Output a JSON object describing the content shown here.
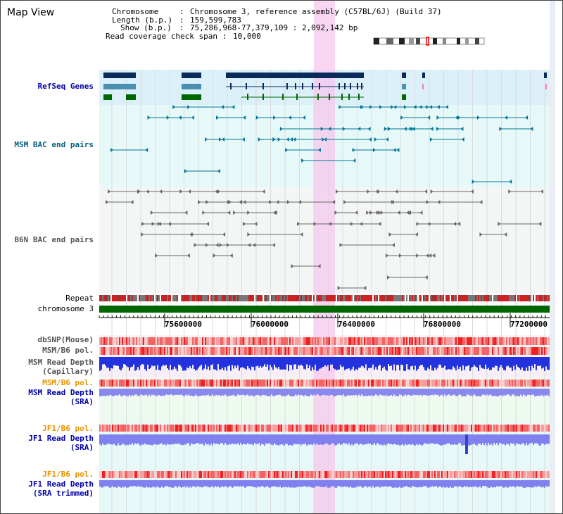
{
  "title": "Map View",
  "info": {
    "chromosome_label": "Chromosome",
    "chromosome_value": "Chromosome 3, reference assembly (C57BL/6J) (Build 37)",
    "length_label": "Length (b.p.)",
    "length_value": "159,599,783",
    "show_label": "Show (b.p.)",
    "show_value": "75,286,968-77,379,109 : 2,092,142 bp",
    "coverage_label": "Read coverage check span",
    "coverage_value": "10,000"
  },
  "tracks": {
    "refseq": "RefSeq Genes",
    "msm_bac": "MSM BAC end pairs",
    "b6n_bac": "B6N BAC end pairs",
    "repeat": "Repeat",
    "chromosome": "chromosome 3",
    "dbsnp": "dbSNP(Mouse)",
    "msm_b6_pol_1": "MSM/B6 pol.",
    "msm_depth_cap_1": "MSM Read Depth",
    "msm_depth_cap_2": "(Capillary)",
    "msm_b6_pol_2": "MSM/B6 pol.",
    "msm_depth_sra_1": "MSM Read Depth",
    "msm_depth_sra_2": "(SRA)",
    "jf1_b6_pol_1": "JF1/B6 pol.",
    "jf1_depth_sra_1": "JF1 Read Depth",
    "jf1_depth_sra_2": "(SRA)",
    "jf1_b6_pol_2": "JF1/B6 pol.",
    "jf1_depth_trim_1": "JF1 Read Depth",
    "jf1_depth_trim_2": "(SRA trimmed)"
  },
  "axis_ticks": [
    "75600000",
    "76000000",
    "76400000",
    "76800000",
    "77200000"
  ],
  "colors": {
    "refseq_bg": "#dcf0fa",
    "msm_bg": "#e6f8f8",
    "b6n_bg": "#f4f6f6",
    "highlight": "#f6c8ee",
    "navy": "#0a2a5c",
    "teal": "#4a90b0",
    "green": "#006600",
    "msm_teal": "#007799",
    "gray": "#666666",
    "label_blue": "#0000aa",
    "label_teal": "#005f7f",
    "label_gray": "#555555",
    "label_orange": "#e89400"
  }
}
